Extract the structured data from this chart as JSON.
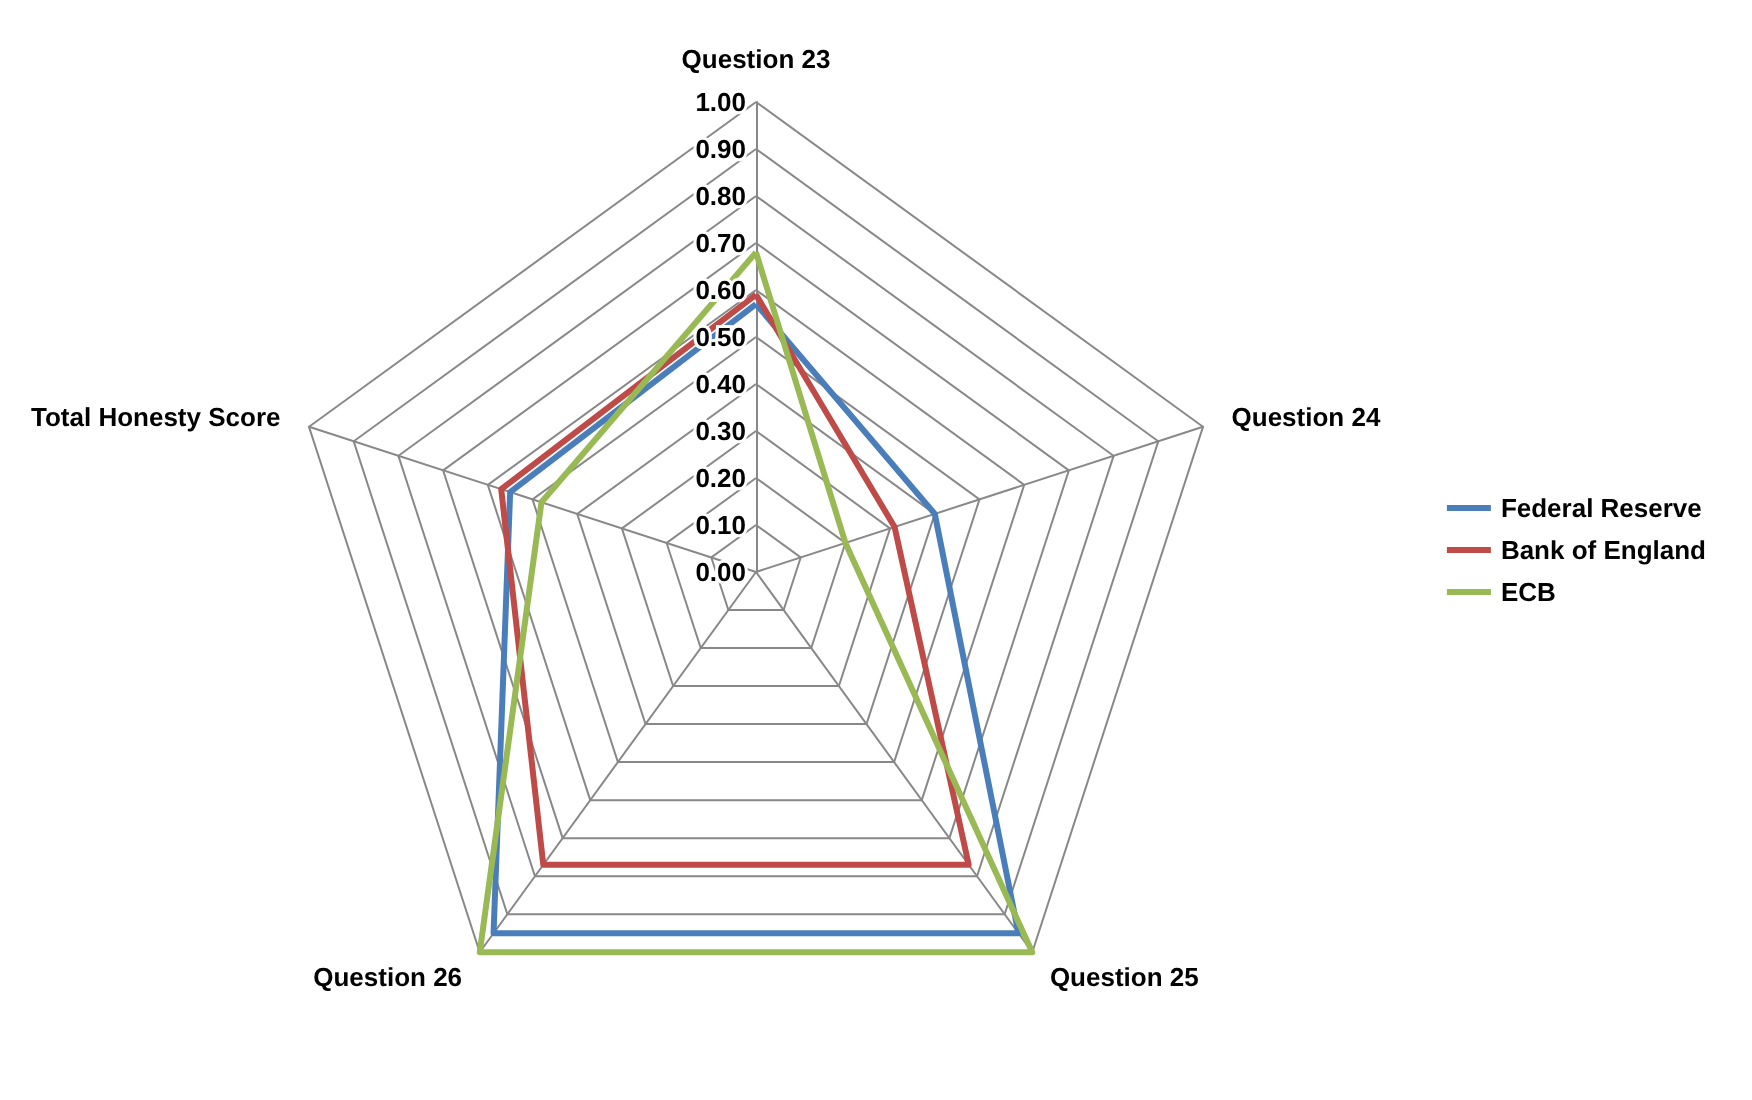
{
  "chart_data": {
    "type": "radar",
    "categories": [
      "Question 23",
      "Question 24",
      "Question 25",
      "Question 26",
      "Total Honesty Score"
    ],
    "series": [
      {
        "name": "Federal Reserve",
        "color": "#4a7ebb",
        "values": [
          0.57,
          0.4,
          0.95,
          0.95,
          0.55
        ]
      },
      {
        "name": "Bank of England",
        "color": "#be4b48",
        "values": [
          0.59,
          0.31,
          0.77,
          0.77,
          0.57
        ]
      },
      {
        "name": "ECB",
        "color": "#98b954",
        "values": [
          0.68,
          0.2,
          1.0,
          1.0,
          0.48
        ]
      }
    ],
    "ylim": [
      0,
      1
    ],
    "yticks": [
      {
        "value": 0,
        "label": "0.00"
      },
      {
        "value": 0.1,
        "label": "0.10"
      },
      {
        "value": 0.2,
        "label": "0.20"
      },
      {
        "value": 0.3,
        "label": "0.30"
      },
      {
        "value": 0.4,
        "label": "0.40"
      },
      {
        "value": 0.5,
        "label": "0.50"
      },
      {
        "value": 0.6,
        "label": "0.60"
      },
      {
        "value": 0.7,
        "label": "0.70"
      },
      {
        "value": 0.8,
        "label": "0.80"
      },
      {
        "value": 0.9,
        "label": "0.90"
      },
      {
        "value": 1,
        "label": "1.00"
      }
    ],
    "grid": true,
    "legend": "right",
    "marker": "none",
    "line_style": "solid"
  }
}
